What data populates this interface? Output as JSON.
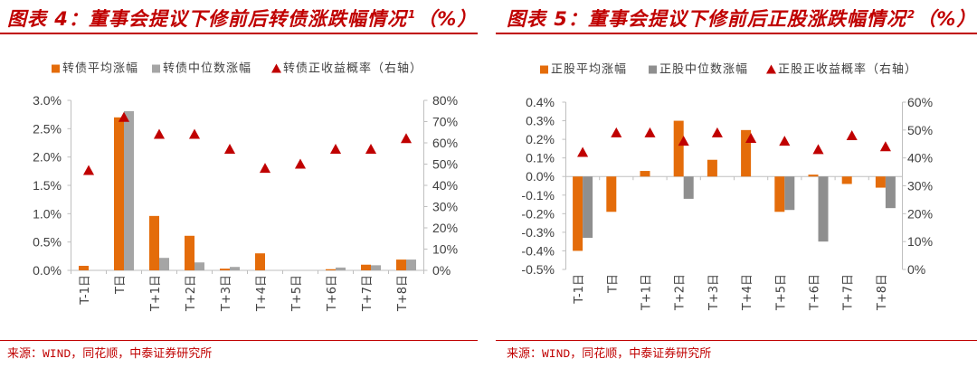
{
  "chart_data": [
    {
      "type": "bar",
      "title": "图表 4：董事会提议下修前后转债涨跌幅情况",
      "title_sup": "1",
      "title_suffix": "（%）",
      "categories": [
        "T-1日",
        "T日",
        "T+1日",
        "T+2日",
        "T+3日",
        "T+4日",
        "T+5日",
        "T+6日",
        "T+7日",
        "T+8日"
      ],
      "ylim": [
        0,
        3.0
      ],
      "yticks": [
        "0.0%",
        "0.5%",
        "1.0%",
        "1.5%",
        "2.0%",
        "2.5%",
        "3.0%"
      ],
      "y2lim": [
        0,
        80
      ],
      "y2ticks": [
        "0%",
        "10%",
        "20%",
        "30%",
        "40%",
        "50%",
        "60%",
        "70%",
        "80%"
      ],
      "grid": false,
      "legend": "top",
      "series": [
        {
          "name": "转债平均涨幅",
          "type": "bar",
          "axis": "left",
          "color": "#E46C0A",
          "values": [
            0.08,
            2.7,
            0.96,
            0.61,
            0.03,
            0.3,
            0.0,
            0.02,
            0.1,
            0.19
          ]
        },
        {
          "name": "转债中位数涨幅",
          "type": "bar",
          "axis": "left",
          "color": "#A5A5A5",
          "values": [
            0.0,
            2.81,
            0.22,
            0.14,
            0.06,
            0.0,
            0.0,
            0.05,
            0.09,
            0.19
          ]
        },
        {
          "name": "转债正收益概率（右轴）",
          "type": "scatter",
          "marker": "triangle",
          "axis": "right",
          "color": "#C00000",
          "values": [
            47,
            72,
            64,
            64,
            57,
            48,
            50,
            57,
            57,
            62
          ]
        }
      ],
      "source": "来源：WIND，同花顺，中泰证券研究所"
    },
    {
      "type": "bar",
      "title": "图表 5：董事会提议下修前后正股涨跌幅情况",
      "title_sup": "2",
      "title_suffix": "（%）",
      "categories": [
        "T-1日",
        "T日",
        "T+1日",
        "T+2日",
        "T+3日",
        "T+4日",
        "T+5日",
        "T+6日",
        "T+7日",
        "T+8日"
      ],
      "ylim": [
        -0.5,
        0.4
      ],
      "yticks": [
        "-0.5%",
        "-0.4%",
        "-0.3%",
        "-0.2%",
        "-0.1%",
        "0.0%",
        "0.1%",
        "0.2%",
        "0.3%",
        "0.4%"
      ],
      "y2lim": [
        0,
        60
      ],
      "y2ticks": [
        "0%",
        "10%",
        "20%",
        "30%",
        "40%",
        "50%",
        "60%"
      ],
      "grid": false,
      "legend": "top",
      "series": [
        {
          "name": "正股平均涨幅",
          "type": "bar",
          "axis": "left",
          "color": "#E46C0A",
          "values": [
            -0.4,
            -0.19,
            0.03,
            0.3,
            0.09,
            0.25,
            -0.19,
            0.01,
            -0.04,
            -0.06
          ]
        },
        {
          "name": "正股中位数涨幅",
          "type": "bar",
          "axis": "left",
          "color": "#8F8F8F",
          "values": [
            -0.33,
            0.0,
            0.0,
            -0.12,
            0.0,
            0.0,
            -0.18,
            -0.35,
            0.0,
            -0.17
          ]
        },
        {
          "name": "正股正收益概率（右轴）",
          "type": "scatter",
          "marker": "triangle",
          "axis": "right",
          "color": "#C00000",
          "values": [
            42,
            49,
            49,
            46,
            49,
            47,
            46,
            43,
            48,
            44
          ]
        }
      ],
      "source": "来源：WIND，同花顺，中泰证券研究所"
    }
  ]
}
